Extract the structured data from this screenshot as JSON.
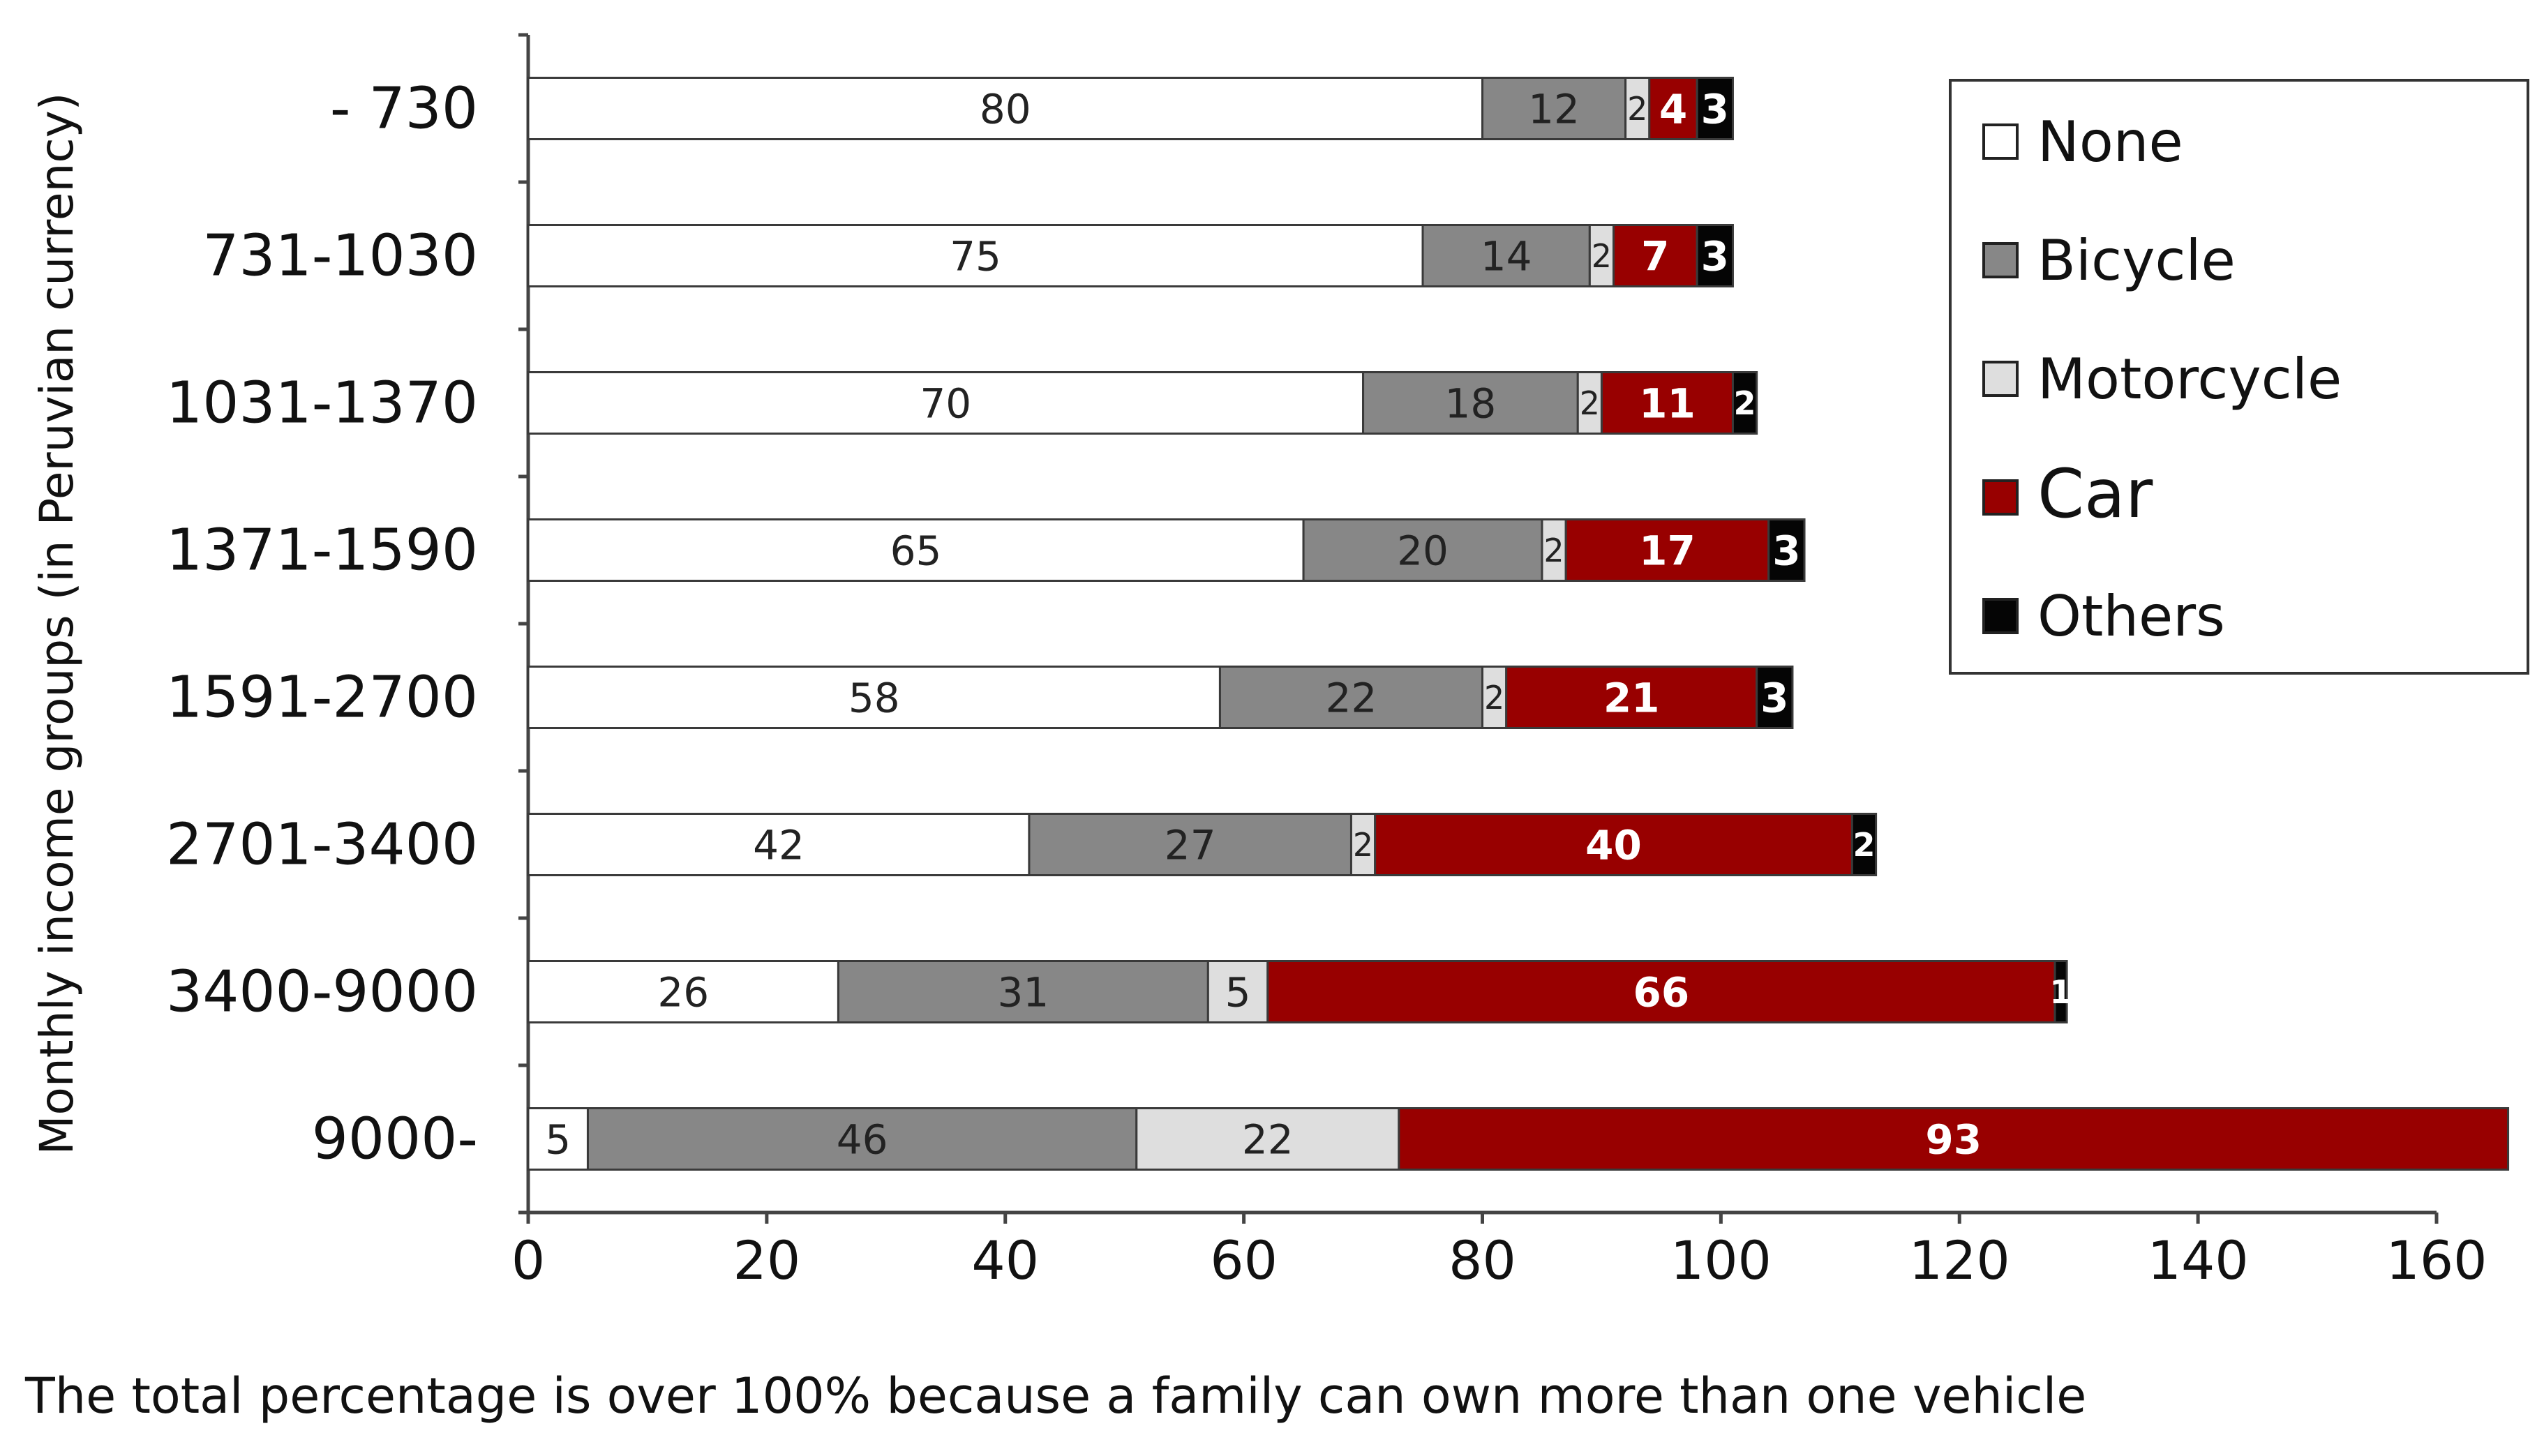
{
  "chart_data": {
    "type": "bar",
    "orientation": "horizontal",
    "stacked": true,
    "ylabel": "Monthly income groups (in Peruvian currency)",
    "xlabel": "",
    "xlim": [
      0,
      160
    ],
    "x_ticks": [
      "0",
      "20",
      "40",
      "60",
      "80",
      "100",
      "120",
      "140",
      "160"
    ],
    "categories": [
      "- 730",
      "731-1030",
      "1031-1370",
      "1371-1590",
      "1591-2700",
      "2701-3400",
      "3400-9000",
      "9000-"
    ],
    "series": [
      {
        "name": "None",
        "color": "#ffffff",
        "label_color": "#222222",
        "values": [
          80,
          75,
          70,
          65,
          58,
          42,
          26,
          5
        ]
      },
      {
        "name": "Bicycle",
        "color": "#878787",
        "label_color": "#222222",
        "values": [
          12,
          14,
          18,
          20,
          22,
          27,
          31,
          46
        ]
      },
      {
        "name": "Motorcycle",
        "color": "#dedede",
        "label_color": "#222222",
        "values": [
          2,
          2,
          2,
          2,
          2,
          2,
          5,
          22
        ]
      },
      {
        "name": "Car",
        "color": "#980000",
        "label_color": "#ffffff",
        "values": [
          4,
          7,
          11,
          17,
          21,
          40,
          66,
          93
        ]
      },
      {
        "name": "Others",
        "color": "#050505",
        "label_color": "#ffffff",
        "values": [
          3,
          3,
          2,
          3,
          3,
          2,
          1,
          0
        ]
      }
    ],
    "legend": {
      "position": "top-right",
      "entries": [
        "None",
        "Bicycle",
        "Motorcycle",
        "Car",
        "Others"
      ]
    },
    "grid": false,
    "note": "The total percentage is over 100% because a family can own more than one vehicle"
  }
}
